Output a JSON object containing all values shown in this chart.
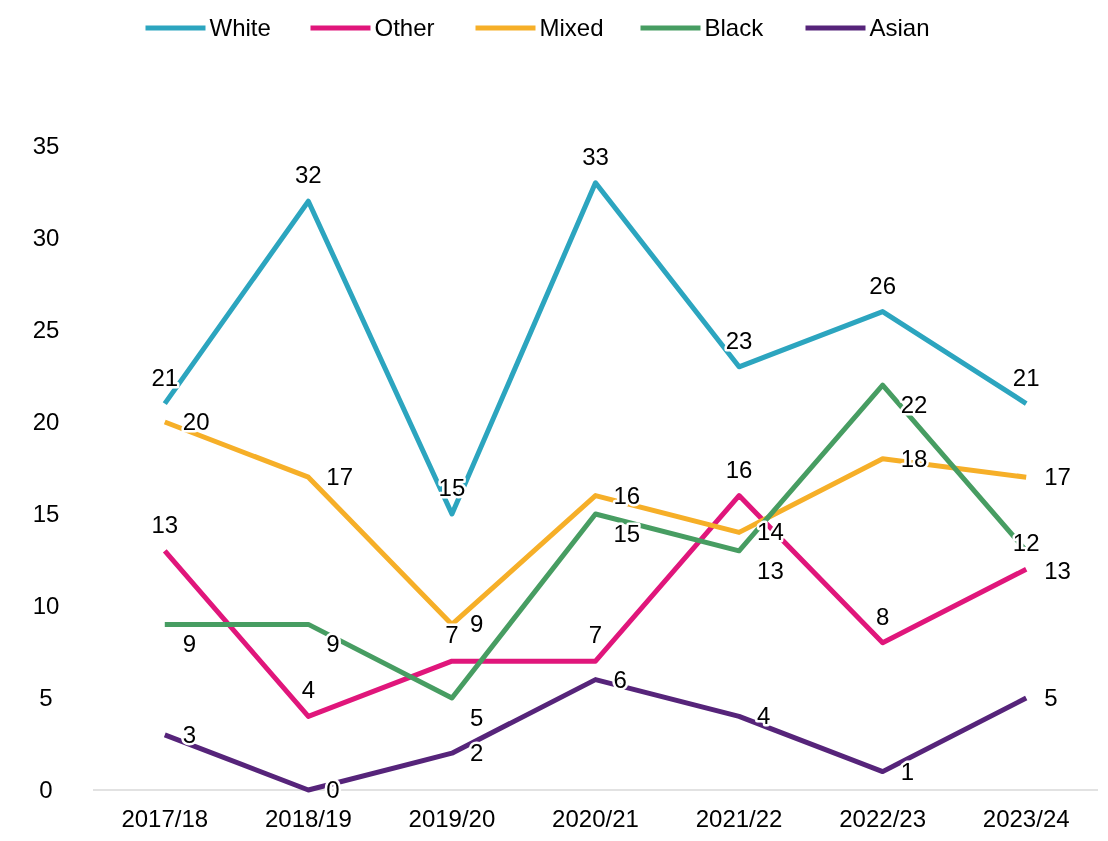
{
  "chart_data": {
    "type": "line",
    "categories": [
      "2017/18",
      "2018/19",
      "2019/20",
      "2020/21",
      "2021/22",
      "2022/23",
      "2023/24"
    ],
    "series": [
      {
        "name": "White",
        "color": "#2ca5bf",
        "values": [
          21,
          32,
          15,
          33,
          23,
          26,
          21
        ]
      },
      {
        "name": "Other",
        "color": "#e0167b",
        "values": [
          13,
          4,
          7,
          7,
          16,
          8,
          12
        ]
      },
      {
        "name": "Mixed",
        "color": "#f6af28",
        "values": [
          20,
          17,
          9,
          16,
          14,
          18,
          17
        ]
      },
      {
        "name": "Black",
        "color": "#479d62",
        "values": [
          9,
          9,
          5,
          15,
          13,
          22,
          13
        ]
      },
      {
        "name": "Asian",
        "color": "#56247a",
        "values": [
          3,
          0,
          2,
          6,
          4,
          1,
          5
        ]
      }
    ],
    "ylim": [
      0,
      35
    ],
    "yticks": [
      0,
      5,
      10,
      15,
      20,
      25,
      30,
      35
    ],
    "grid": false,
    "legend": "top",
    "data_labels": true,
    "marker": "none",
    "line_style": "solid"
  }
}
